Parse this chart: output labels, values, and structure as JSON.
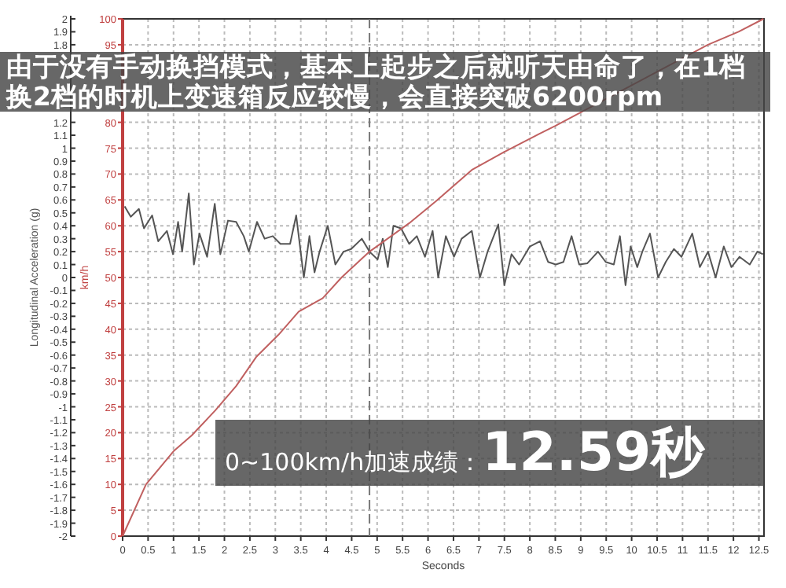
{
  "chart_data": {
    "type": "line",
    "xlabel": "Seconds",
    "ylabel": "Longitudinal Acceleration (g)",
    "y2label": "km/h",
    "annotations": [
      "由于没有手动换挡模式，基本上起步之后就听天由命了，在1档换2档的时机上变速箱反应较慢，会直接突破6200rpm",
      "0~100km/h加速成绩：",
      "12.59秒"
    ],
    "xlim": [
      0,
      12.6
    ],
    "xticks": [
      0,
      0.5,
      1,
      1.5,
      2,
      2.5,
      3,
      3.5,
      4,
      4.5,
      5,
      5.5,
      6,
      6.5,
      7,
      7.5,
      8,
      8.5,
      9,
      9.5,
      10,
      10.5,
      11,
      11.5,
      12,
      12.5
    ],
    "ylim": [
      -2,
      2
    ],
    "yticks": [
      -2,
      -1.9,
      -1.8,
      -1.7,
      -1.6,
      -1.5,
      -1.4,
      -1.3,
      -1.2,
      -1.1,
      -1,
      -0.9,
      -0.8,
      -0.7,
      -0.6,
      -0.5,
      -0.4,
      -0.3,
      -0.2,
      -0.1,
      0,
      0.1,
      0.2,
      0.3,
      0.4,
      0.5,
      0.6,
      0.7,
      0.8,
      0.9,
      1,
      1.1,
      1.2,
      1.8,
      1.9,
      2
    ],
    "y2lim": [
      0,
      100
    ],
    "y2ticks": [
      0,
      5,
      10,
      15,
      20,
      25,
      30,
      35,
      40,
      45,
      50,
      55,
      60,
      65,
      70,
      75,
      80,
      95,
      100
    ],
    "grid": true,
    "ref_lines": [
      {
        "axis": "x",
        "value": 4.85,
        "color": "#777777",
        "line_style": "dashed"
      }
    ],
    "series": [
      {
        "color": "#555555",
        "axis": "y",
        "x": [
          0.04,
          0.16,
          0.32,
          0.42,
          0.58,
          0.7,
          0.87,
          0.99,
          1.09,
          1.17,
          1.3,
          1.4,
          1.51,
          1.66,
          1.81,
          1.92,
          2.07,
          2.23,
          2.38,
          2.48,
          2.64,
          2.79,
          2.95,
          3.1,
          3.29,
          3.41,
          3.56,
          3.67,
          3.77,
          3.87,
          4.03,
          4.18,
          4.34,
          4.49,
          4.7,
          4.85,
          5.01,
          5.11,
          5.21,
          5.32,
          5.47,
          5.63,
          5.78,
          5.94,
          6.09,
          6.2,
          6.35,
          6.51,
          6.66,
          6.86,
          7.02,
          7.17,
          7.38,
          7.5,
          7.64,
          7.79,
          8.0,
          8.2,
          8.36,
          8.51,
          8.66,
          8.82,
          8.97,
          9.13,
          9.34,
          9.49,
          9.65,
          9.77,
          9.88,
          9.98,
          10.11,
          10.21,
          10.36,
          10.52,
          10.67,
          10.83,
          10.98,
          11.19,
          11.34,
          11.5,
          11.65,
          11.81,
          11.96,
          12.12,
          12.32,
          12.47,
          12.58
        ],
        "values": [
          0.55,
          0.47,
          0.53,
          0.38,
          0.48,
          0.28,
          0.36,
          0.18,
          0.43,
          0.2,
          0.65,
          0.1,
          0.34,
          0.16,
          0.57,
          0.18,
          0.44,
          0.43,
          0.32,
          0.2,
          0.43,
          0.3,
          0.32,
          0.26,
          0.26,
          0.48,
          0,
          0.32,
          0.04,
          0.2,
          0.4,
          0.1,
          0.2,
          0.22,
          0.3,
          0.2,
          0.14,
          0.3,
          0.08,
          0.4,
          0.38,
          0.26,
          0.32,
          0.16,
          0.36,
          0,
          0.32,
          0.16,
          0.3,
          0.36,
          0,
          0.2,
          0.41,
          -0.06,
          0.18,
          0.1,
          0.24,
          0.28,
          0.12,
          0.1,
          0.12,
          0.32,
          0.1,
          0.11,
          0.2,
          0.12,
          0.1,
          0.32,
          -0.06,
          0.24,
          0.08,
          0.2,
          0.34,
          0,
          0.12,
          0.22,
          0.16,
          0.34,
          0.08,
          0.2,
          0,
          0.24,
          0.08,
          0.16,
          0.1,
          0.2,
          0.18
        ]
      },
      {
        "color": "#c06060",
        "axis": "y2",
        "x": [
          0,
          0.46,
          1.0,
          1.36,
          1.82,
          2.23,
          2.63,
          3.06,
          3.46,
          3.93,
          4.3,
          4.85,
          5.63,
          6.15,
          6.86,
          7.48,
          8.19,
          8.5,
          11.5,
          12.1,
          12.59
        ],
        "values": [
          0,
          10,
          16.4,
          19.5,
          24.3,
          29,
          34.7,
          38.9,
          43.4,
          46,
          50,
          55,
          60.5,
          64.7,
          70.8,
          74.2,
          77.8,
          79.3,
          95,
          97.5,
          100
        ]
      }
    ]
  }
}
